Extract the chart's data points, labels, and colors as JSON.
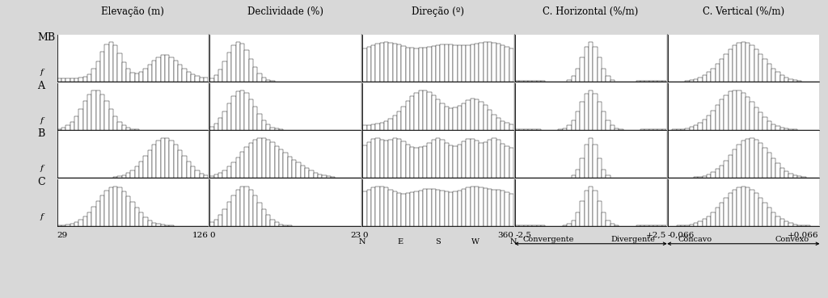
{
  "col_titles": [
    "Elevação (m)",
    "Declividade (%)",
    "Direção (º)",
    "C. Horizontal (%/m)",
    "C. Vertical (%/m)"
  ],
  "row_labels": [
    "MB",
    "A",
    "B",
    "C"
  ],
  "x_axis_labels": [
    [
      "29",
      "126"
    ],
    [
      "0",
      "23"
    ],
    [
      "0",
      "360"
    ],
    [
      "-2,5",
      "+2,5"
    ],
    [
      "-0,066",
      "+0,066"
    ]
  ],
  "dir_sublabels": [
    "N",
    "E",
    "S",
    "W",
    "N"
  ],
  "ch_sublabels": [
    "Convergente",
    "Divergente"
  ],
  "cv_sublabels": [
    "Côncavo",
    "Convexo"
  ],
  "fig_bg": "#d8d8d8",
  "panel_bg": "#ffffff",
  "bar_color": "#ffffff",
  "bar_edgecolor": "#222222",
  "shapes": [
    [
      "mb_elev",
      "mb_decl",
      "mb_dir",
      "mb_ch",
      "mb_cv"
    ],
    [
      "a_elev",
      "a_decl",
      "a_dir",
      "a_ch",
      "a_cv"
    ],
    [
      "b_elev",
      "b_decl",
      "b_dir",
      "b_ch",
      "b_cv"
    ],
    [
      "c_elev",
      "c_decl",
      "c_dir",
      "c_ch",
      "c_cv"
    ]
  ]
}
